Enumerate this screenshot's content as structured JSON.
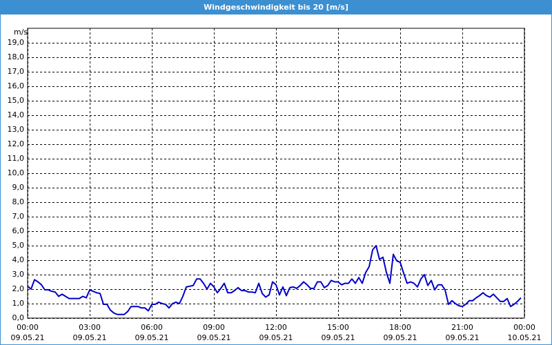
{
  "chart_data": {
    "type": "line",
    "title": "Windgeschwindigkeit bis 20 [m/s]",
    "ylabel": "m/s",
    "xlim": [
      0,
      1440
    ],
    "xticks": [
      {
        "value": 0,
        "label": "00:00",
        "date": "09.05.21"
      },
      {
        "value": 180,
        "label": "03:00",
        "date": "09.05.21"
      },
      {
        "value": 360,
        "label": "06:00",
        "date": "09.05.21"
      },
      {
        "value": 540,
        "label": "09:00",
        "date": "09.05.21"
      },
      {
        "value": 720,
        "label": "12:00",
        "date": "09.05.21"
      },
      {
        "value": 900,
        "label": "15:00",
        "date": "09.05.21"
      },
      {
        "value": 1080,
        "label": "18:00",
        "date": "09.05.21"
      },
      {
        "value": 1260,
        "label": "21:00",
        "date": "09.05.21"
      },
      {
        "value": 1440,
        "label": "00:00",
        "date": "10.05.21"
      }
    ],
    "ylim": [
      0,
      20
    ],
    "yticks": [
      {
        "value": 0,
        "label": "0,0"
      },
      {
        "value": 1,
        "label": "1,0"
      },
      {
        "value": 2,
        "label": "2,0"
      },
      {
        "value": 3,
        "label": "3,0"
      },
      {
        "value": 4,
        "label": "4,0"
      },
      {
        "value": 5,
        "label": "5,0"
      },
      {
        "value": 6,
        "label": "6,0"
      },
      {
        "value": 7,
        "label": "7,0"
      },
      {
        "value": 8,
        "label": "8,0"
      },
      {
        "value": 9,
        "label": "9,0"
      },
      {
        "value": 10,
        "label": "10,0"
      },
      {
        "value": 11,
        "label": "11,0"
      },
      {
        "value": 12,
        "label": "12,0"
      },
      {
        "value": 13,
        "label": "13,0"
      },
      {
        "value": 14,
        "label": "14,0"
      },
      {
        "value": 15,
        "label": "15,0"
      },
      {
        "value": 16,
        "label": "16,0"
      },
      {
        "value": 17,
        "label": "17,0"
      },
      {
        "value": 18,
        "label": "18,0"
      },
      {
        "value": 19,
        "label": "19,0"
      }
    ],
    "grid": true,
    "color": "#0000c8",
    "x": [
      0,
      10,
      20,
      30,
      40,
      50,
      60,
      70,
      80,
      90,
      100,
      110,
      120,
      130,
      140,
      150,
      160,
      170,
      180,
      190,
      200,
      210,
      220,
      230,
      240,
      250,
      260,
      270,
      280,
      290,
      300,
      310,
      320,
      330,
      340,
      350,
      360,
      370,
      380,
      390,
      400,
      410,
      420,
      430,
      440,
      450,
      460,
      470,
      480,
      490,
      500,
      510,
      520,
      530,
      540,
      550,
      560,
      570,
      580,
      590,
      600,
      610,
      620,
      630,
      640,
      650,
      660,
      670,
      680,
      690,
      700,
      710,
      720,
      730,
      740,
      750,
      760,
      770,
      780,
      790,
      800,
      810,
      820,
      830,
      840,
      850,
      860,
      870,
      880,
      890,
      900,
      910,
      920,
      930,
      940,
      950,
      960,
      970,
      980,
      990,
      1000,
      1010,
      1020,
      1030,
      1040,
      1050,
      1060,
      1070,
      1080,
      1090,
      1100,
      1110,
      1120,
      1130,
      1140,
      1150,
      1160,
      1170,
      1180,
      1190,
      1200,
      1210,
      1220,
      1230,
      1240,
      1250,
      1260,
      1270,
      1280,
      1290,
      1300,
      1310,
      1320,
      1330,
      1340,
      1350,
      1360,
      1370,
      1380,
      1390,
      1400,
      1410,
      1420,
      1430
    ],
    "values": [
      2.2,
      2.0,
      2.65,
      2.5,
      2.3,
      1.95,
      1.95,
      1.85,
      1.8,
      1.5,
      1.65,
      1.5,
      1.35,
      1.35,
      1.35,
      1.35,
      1.5,
      1.4,
      1.95,
      1.85,
      1.75,
      1.7,
      0.95,
      0.95,
      0.55,
      0.35,
      0.25,
      0.25,
      0.25,
      0.45,
      0.8,
      0.8,
      0.8,
      0.7,
      0.7,
      0.5,
      0.95,
      0.95,
      1.1,
      1.0,
      0.95,
      0.7,
      1.0,
      1.1,
      1.0,
      1.5,
      2.15,
      2.2,
      2.25,
      2.7,
      2.7,
      2.4,
      2.0,
      2.4,
      2.15,
      1.75,
      2.05,
      2.4,
      1.75,
      1.75,
      1.9,
      2.1,
      1.9,
      1.9,
      1.8,
      1.8,
      1.75,
      2.4,
      1.7,
      1.45,
      1.6,
      2.5,
      2.3,
      1.6,
      2.15,
      1.55,
      2.1,
      2.15,
      2.05,
      2.25,
      2.5,
      2.3,
      2.05,
      2.05,
      2.5,
      2.5,
      2.1,
      2.25,
      2.6,
      2.5,
      2.5,
      2.3,
      2.4,
      2.4,
      2.7,
      2.4,
      2.8,
      2.4,
      3.15,
      3.55,
      4.7,
      5.0,
      4.05,
      4.2,
      3.15,
      2.4,
      4.4,
      3.95,
      3.85,
      3.1,
      2.4,
      2.5,
      2.4,
      2.15,
      2.7,
      3.0,
      2.25,
      2.6,
      1.95,
      2.3,
      2.3,
      1.95,
      0.95,
      1.2,
      1.0,
      0.85,
      0.8,
      0.95,
      1.2,
      1.2,
      1.4,
      1.55,
      1.75,
      1.55,
      1.45,
      1.65,
      1.4,
      1.15,
      1.15,
      1.35,
      0.8,
      0.95,
      1.15,
      1.4
    ]
  }
}
